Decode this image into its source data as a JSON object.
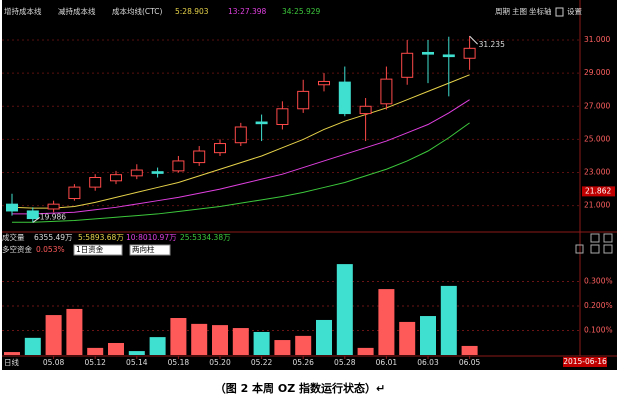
{
  "header": {
    "indicators": [
      "增持成本线",
      "减持成本线",
      "成本均线(CTC)"
    ],
    "tools": [
      "周期",
      "主图",
      "坐标轴",
      "设置"
    ]
  },
  "chart_data": [
    {
      "type": "candlestick",
      "up_color": "#ff4a4a",
      "down_color": "#40e0d0",
      "open": [
        21.09,
        20.68,
        20.8,
        21.43,
        22.12,
        22.5,
        22.8,
        23.05,
        23.1,
        23.6,
        24.2,
        24.8,
        26.05,
        25.9,
        26.85,
        28.3,
        28.46,
        26.56,
        27.15,
        28.75,
        30.25,
        30.1,
        29.9
      ],
      "close": [
        20.68,
        20.22,
        21.09,
        22.12,
        22.7,
        22.87,
        23.15,
        22.95,
        23.7,
        24.3,
        24.75,
        25.75,
        25.95,
        26.85,
        27.9,
        28.5,
        26.56,
        27.0,
        28.64,
        30.2,
        30.15,
        30.0,
        30.5
      ],
      "high": [
        21.72,
        20.9,
        21.3,
        22.3,
        22.9,
        23.1,
        23.5,
        23.3,
        24.0,
        24.6,
        25.0,
        26.0,
        26.5,
        27.3,
        28.6,
        29.0,
        29.4,
        27.5,
        29.4,
        31.0,
        31.0,
        31.2,
        31.235
      ],
      "low": [
        20.4,
        19.986,
        20.6,
        21.3,
        21.9,
        22.3,
        22.6,
        22.7,
        23.0,
        23.4,
        24.0,
        24.6,
        24.9,
        25.6,
        26.6,
        27.9,
        26.4,
        24.9,
        26.8,
        28.3,
        28.4,
        27.6,
        29.2
      ],
      "series": [
        {
          "name": "5:28.903",
          "color": "#e6d24a",
          "values": [
            20.9,
            20.85,
            20.85,
            20.95,
            21.2,
            21.5,
            21.8,
            22.1,
            22.4,
            22.8,
            23.2,
            23.6,
            24.0,
            24.5,
            25.0,
            25.6,
            26.1,
            26.5,
            26.9,
            27.4,
            27.9,
            28.4,
            28.9
          ]
        },
        {
          "name": "13:27.398",
          "color": "#e040e0",
          "values": [
            20.5,
            20.5,
            20.55,
            20.6,
            20.75,
            20.9,
            21.1,
            21.3,
            21.5,
            21.75,
            22.0,
            22.3,
            22.6,
            22.9,
            23.3,
            23.7,
            24.1,
            24.5,
            24.9,
            25.4,
            25.9,
            26.6,
            27.4
          ]
        },
        {
          "name": "34:25.929",
          "color": "#3cc83c",
          "values": [
            20.0,
            20.0,
            20.05,
            20.1,
            20.2,
            20.3,
            20.4,
            20.5,
            20.65,
            20.8,
            20.95,
            21.15,
            21.35,
            21.55,
            21.8,
            22.1,
            22.4,
            22.8,
            23.2,
            23.7,
            24.3,
            25.1,
            26.0
          ]
        }
      ],
      "ylim": [
        19.53,
        32.21
      ],
      "yticks": [
        {
          "value": 21,
          "label": "21.000"
        },
        {
          "value": 23,
          "label": "23.000"
        },
        {
          "value": 25,
          "label": "25.000"
        },
        {
          "value": 27,
          "label": "27.000"
        },
        {
          "value": 29,
          "label": "29.000"
        },
        {
          "value": 31,
          "label": "31.000"
        }
      ],
      "last_price": 21.862,
      "high_mark": 31.235,
      "low_mark": 19.986
    },
    {
      "type": "bar",
      "categories": [
        null,
        null,
        "05.08",
        null,
        "05.12",
        null,
        "05.14",
        null,
        "05.18",
        null,
        "05.20",
        null,
        "05.22",
        null,
        "05.26",
        null,
        "05.28",
        null,
        "06.01",
        null,
        "06.03",
        null,
        "06.05"
      ],
      "values": [
        0.012,
        0.07,
        0.163,
        0.188,
        0.029,
        0.049,
        0.016,
        0.073,
        0.151,
        0.127,
        0.122,
        0.11,
        0.094,
        0.061,
        0.078,
        0.143,
        0.371,
        0.029,
        0.269,
        0.135,
        0.159,
        0.282,
        0.037
      ],
      "colors": [
        "#ff5a5a",
        "#40e0d0",
        "#ff5a5a",
        "#ff5a5a",
        "#ff5a5a",
        "#ff5a5a",
        "#40e0d0",
        "#40e0d0",
        "#ff5a5a",
        "#ff5a5a",
        "#ff5a5a",
        "#ff5a5a",
        "#40e0d0",
        "#ff5a5a",
        "#ff5a5a",
        "#40e0d0",
        "#40e0d0",
        "#ff5a5a",
        "#ff5a5a",
        "#ff5a5a",
        "#40e0d0",
        "#40e0d0",
        "#ff5a5a"
      ],
      "ylim": [
        0,
        0.4
      ],
      "yticks": [
        {
          "value": 0.1,
          "label": "0.100%"
        },
        {
          "value": 0.2,
          "label": "0.200%"
        },
        {
          "value": 0.3,
          "label": "0.300%"
        }
      ]
    }
  ],
  "volume_info": {
    "title": "成交量",
    "items": [
      "6355.49万",
      "5:5893.68万",
      "10:8010.97万",
      "25:5334.38万"
    ]
  },
  "fund_panel": {
    "title": "多空资金",
    "value": "0.053%",
    "selects": [
      "1日资金",
      "两向柱"
    ]
  },
  "footer": {
    "period": "日线",
    "date": "2015-06-16"
  },
  "caption": "（图 2 本周 OZ 指数运行状态）↵"
}
